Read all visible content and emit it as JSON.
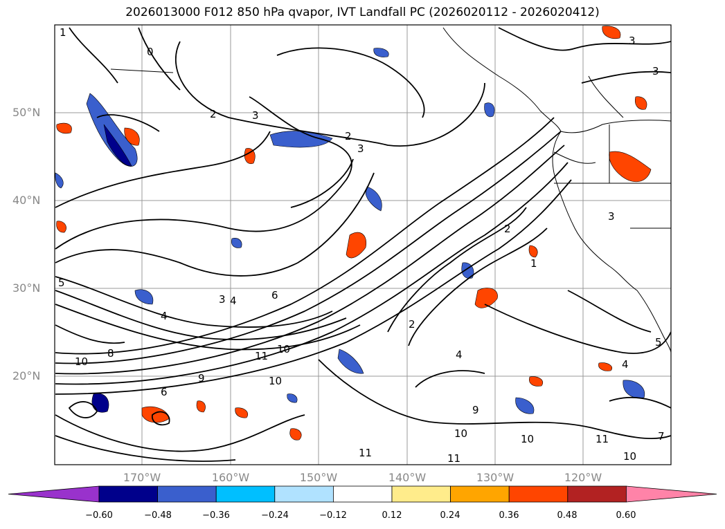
{
  "title": "2026013000 F012 850 hPa qvapor, IVT Landfall PC (2026020112 - 2026020412)",
  "lat_labels": [
    "50°N",
    "40°N",
    "30°N",
    "20°N"
  ],
  "lon_labels": [
    "170°W",
    "160°W",
    "150°W",
    "140°W",
    "130°W",
    "120°W"
  ],
  "colorbar": {
    "colors": [
      "#9932cc",
      "#00008b",
      "#3a5fcd",
      "#00bfff",
      "#b0e2ff",
      "#ffffff",
      "#ffec8b",
      "#ffa500",
      "#ff4500",
      "#b22222",
      "#ff83a8"
    ],
    "tick_labels": [
      "−0.60",
      "−0.48",
      "−0.36",
      "−0.24",
      "−0.12",
      "0.12",
      "0.24",
      "0.36",
      "0.48",
      "0.60"
    ]
  },
  "contour_labels": [
    {
      "text": "1"
    },
    {
      "text": "0"
    },
    {
      "text": "3"
    },
    {
      "text": "2"
    },
    {
      "text": "3"
    },
    {
      "text": "3"
    },
    {
      "text": "3"
    },
    {
      "text": "2"
    },
    {
      "text": "3"
    },
    {
      "text": "2"
    },
    {
      "text": "1"
    },
    {
      "text": "3"
    },
    {
      "text": "4"
    },
    {
      "text": "6"
    },
    {
      "text": "4"
    },
    {
      "text": "8"
    },
    {
      "text": "10"
    },
    {
      "text": "10"
    },
    {
      "text": "11"
    },
    {
      "text": "10"
    },
    {
      "text": "6"
    },
    {
      "text": "9"
    },
    {
      "text": "10"
    },
    {
      "text": "11"
    },
    {
      "text": "11"
    },
    {
      "text": "10"
    },
    {
      "text": "11"
    },
    {
      "text": "9"
    },
    {
      "text": "10"
    },
    {
      "text": "5"
    },
    {
      "text": "4"
    },
    {
      "text": "5"
    },
    {
      "text": "2"
    },
    {
      "text": "4"
    },
    {
      "text": "7"
    }
  ]
}
